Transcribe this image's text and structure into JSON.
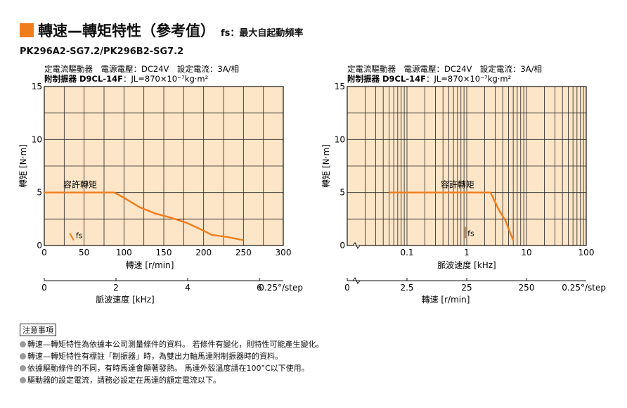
{
  "title": {
    "main": "轉速—轉矩特性（參考值）",
    "fs_note": "fs：最大自起動頻率",
    "accent_color": "#f07d1c"
  },
  "model": "PK296A2-SG7.2/PK296B2-SG7.2",
  "chart_data": [
    {
      "type": "line",
      "conditions_line1": "定電流驅動器　電源電壓：DC24V　設定電流：3A/相",
      "conditions_line2_bold": "附制振器 D9CL-14F",
      "conditions_line2_rest": "：JL=870×10⁻⁷kg·m²",
      "ylabel": "轉矩 [N·m]",
      "ylim": [
        0,
        15
      ],
      "yticks": [
        0,
        5,
        10,
        15
      ],
      "xlabel": "轉速 [r/min]",
      "xlim": [
        0,
        300
      ],
      "xticks": [
        0,
        50,
        100,
        150,
        200,
        250,
        300
      ],
      "x2label": "脈波速度 [kHz]",
      "x2ticks": [
        0,
        2,
        4,
        6
      ],
      "x2unit": "0.25°/step",
      "grid": true,
      "background": "#fde6c8",
      "series": [
        {
          "name": "容許轉矩",
          "color": "#f07d1c",
          "x": [
            0,
            88,
            100,
            120,
            140,
            160,
            180,
            200,
            210,
            230,
            250
          ],
          "y": [
            5,
            5,
            4.5,
            3.6,
            3.0,
            2.6,
            2.1,
            1.4,
            1.0,
            0.8,
            0.5
          ]
        }
      ],
      "fs_label": "fs",
      "fs_x": 37,
      "fs_y": 0.5
    },
    {
      "type": "line",
      "x_scale": "log",
      "conditions_line1": "定電流驅動器　電源電壓：DC24V　設定電流：3A/相",
      "conditions_line2_bold": "附制振器 D9CL-14F",
      "conditions_line2_rest": "：JL=870×10⁻⁷kg·m²",
      "ylabel": "轉矩 [N·m]",
      "ylim": [
        0,
        15
      ],
      "yticks": [
        0,
        5,
        10,
        15
      ],
      "xlabel": "脈波速度 [kHz]",
      "xlim": [
        0.01,
        100
      ],
      "xticks": [
        0.1,
        1,
        10,
        100
      ],
      "x2label": "轉速 [r/min]",
      "x2ticks": [
        0,
        2.5,
        25,
        250
      ],
      "x2unit": "0.25°/step",
      "grid": true,
      "background": "#fde6c8",
      "series": [
        {
          "name": "容許轉矩",
          "color": "#f07d1c",
          "x": [
            0.05,
            2.5,
            3.5,
            4.5,
            5.5,
            6.0
          ],
          "y": [
            5,
            5,
            3.3,
            2.3,
            1.0,
            0.5
          ]
        }
      ],
      "fs_label": "fs",
      "fs_x": 0.95,
      "fs_y": 0.7
    }
  ],
  "notes": {
    "title": "注意事項",
    "items": [
      "轉速—轉矩特性為依據本公司測量條件的資料。 若條件有變化，則特性可能產生變化。",
      "轉速—轉矩特性有標註「制振器」時，為雙出力軸馬達附制振器時的資料。",
      "依據驅動條件的不同，有時馬達會顯著發熱。 馬達外殼溫度請在100°C以下使用。",
      "驅動器的設定電流，請務必設定在馬達的額定電流以下。"
    ],
    "bullet_color": "#9a9a9a"
  }
}
